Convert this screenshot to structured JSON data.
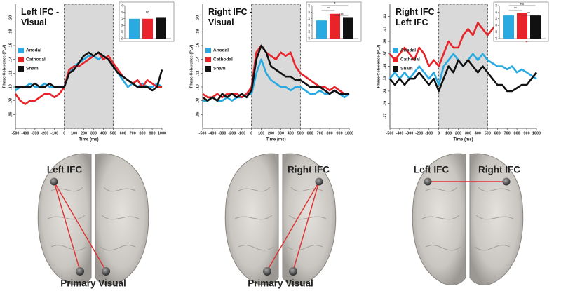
{
  "chart_data": [
    {
      "type": "line",
      "title": "Left IFC - Visual",
      "x_label": "Time (ms)",
      "y_label": "Phase Coherence (PLV)",
      "x": [
        -500,
        -450,
        -400,
        -350,
        -300,
        -250,
        -200,
        -150,
        -100,
        -50,
        0,
        50,
        100,
        150,
        200,
        250,
        300,
        350,
        400,
        450,
        500,
        550,
        600,
        650,
        700,
        750,
        800,
        850,
        900,
        950,
        1000
      ],
      "xlim": [
        -500,
        1000
      ],
      "xticks": [
        -500,
        -400,
        -300,
        -200,
        -100,
        0,
        100,
        200,
        300,
        400,
        500,
        600,
        700,
        800,
        900,
        1000
      ],
      "ylim": [
        0.04,
        0.22
      ],
      "yticks": [
        {
          "value": 0.06,
          "label": ".06"
        },
        {
          "value": 0.08,
          "label": ".08"
        },
        {
          "value": 0.1,
          "label": ".10"
        },
        {
          "value": 0.12,
          "label": ".12"
        },
        {
          "value": 0.14,
          "label": ".14"
        },
        {
          "value": 0.16,
          "label": ".16"
        },
        {
          "value": 0.18,
          "label": ".18"
        },
        {
          "value": 0.2,
          "label": ".20"
        }
      ],
      "shade": [
        0,
        500
      ],
      "legend": "left",
      "series": [
        {
          "name": "Anodal",
          "color": "#29abe2",
          "values": [
            0.095,
            0.1,
            0.1,
            0.105,
            0.1,
            0.1,
            0.105,
            0.1,
            0.1,
            0.1,
            0.1,
            0.12,
            0.13,
            0.135,
            0.14,
            0.145,
            0.145,
            0.14,
            0.145,
            0.14,
            0.13,
            0.12,
            0.11,
            0.1,
            0.105,
            0.1,
            0.105,
            0.1,
            0.1,
            0.105,
            0.1
          ]
        },
        {
          "name": "Cathodal",
          "color": "#e8232a",
          "values": [
            0.09,
            0.08,
            0.075,
            0.08,
            0.08,
            0.085,
            0.09,
            0.09,
            0.085,
            0.09,
            0.1,
            0.125,
            0.13,
            0.13,
            0.135,
            0.14,
            0.145,
            0.15,
            0.14,
            0.145,
            0.135,
            0.125,
            0.115,
            0.11,
            0.105,
            0.11,
            0.1,
            0.11,
            0.105,
            0.1,
            0.1
          ]
        },
        {
          "name": "Sham",
          "color": "#111111",
          "values": [
            0.1,
            0.1,
            0.1,
            0.1,
            0.105,
            0.1,
            0.1,
            0.105,
            0.1,
            0.1,
            0.1,
            0.12,
            0.125,
            0.135,
            0.145,
            0.15,
            0.145,
            0.15,
            0.145,
            0.14,
            0.13,
            0.12,
            0.115,
            0.11,
            0.105,
            0.1,
            0.1,
            0.1,
            0.095,
            0.1,
            0.125
          ]
        }
      ],
      "inset": {
        "values": [
          0.12,
          0.12,
          0.13
        ],
        "ylim": [
          0,
          0.2
        ],
        "yticks": [
          {
            "value": 0,
            "label": ".00"
          },
          {
            "value": 0.04,
            "label": ".04"
          },
          {
            "value": 0.08,
            "label": ".08"
          },
          {
            "value": 0.12,
            "label": ".12"
          },
          {
            "value": 0.16,
            "label": ".16"
          },
          {
            "value": 0.2,
            "label": ".20"
          }
        ],
        "significance": [
          "ns"
        ]
      }
    },
    {
      "type": "line",
      "title": "Right IFC - Visual",
      "x_label": "Time (ms)",
      "y_label": "Phase Coherence (PLV)",
      "x": [
        -500,
        -450,
        -400,
        -350,
        -300,
        -250,
        -200,
        -150,
        -100,
        -50,
        0,
        50,
        100,
        150,
        200,
        250,
        300,
        350,
        400,
        450,
        500,
        550,
        600,
        650,
        700,
        750,
        800,
        850,
        900,
        950,
        1000
      ],
      "xlim": [
        -500,
        1000
      ],
      "xticks": [
        -500,
        -400,
        -300,
        -200,
        -100,
        0,
        100,
        200,
        300,
        400,
        500,
        600,
        700,
        800,
        900,
        1000
      ],
      "ylim": [
        0.04,
        0.22
      ],
      "yticks": [
        {
          "value": 0.06,
          "label": ".06"
        },
        {
          "value": 0.08,
          "label": ".08"
        },
        {
          "value": 0.1,
          "label": ".10"
        },
        {
          "value": 0.12,
          "label": ".12"
        },
        {
          "value": 0.14,
          "label": ".14"
        },
        {
          "value": 0.16,
          "label": ".16"
        },
        {
          "value": 0.18,
          "label": ".18"
        },
        {
          "value": 0.2,
          "label": ".20"
        }
      ],
      "shade": [
        0,
        500
      ],
      "legend": "left",
      "series": [
        {
          "name": "Anodal",
          "color": "#29abe2",
          "values": [
            0.08,
            0.08,
            0.085,
            0.08,
            0.08,
            0.085,
            0.08,
            0.085,
            0.085,
            0.09,
            0.09,
            0.12,
            0.14,
            0.12,
            0.11,
            0.105,
            0.1,
            0.1,
            0.095,
            0.1,
            0.1,
            0.095,
            0.09,
            0.09,
            0.095,
            0.09,
            0.09,
            0.095,
            0.09,
            0.085,
            0.09
          ]
        },
        {
          "name": "Cathodal",
          "color": "#e8232a",
          "values": [
            0.09,
            0.085,
            0.085,
            0.09,
            0.085,
            0.09,
            0.09,
            0.09,
            0.085,
            0.09,
            0.1,
            0.15,
            0.16,
            0.15,
            0.145,
            0.14,
            0.15,
            0.145,
            0.15,
            0.13,
            0.12,
            0.115,
            0.11,
            0.105,
            0.1,
            0.1,
            0.095,
            0.1,
            0.095,
            0.09,
            0.09
          ]
        },
        {
          "name": "Sham",
          "color": "#111111",
          "values": [
            0.085,
            0.08,
            0.085,
            0.08,
            0.09,
            0.085,
            0.09,
            0.085,
            0.09,
            0.085,
            0.095,
            0.14,
            0.16,
            0.15,
            0.13,
            0.125,
            0.12,
            0.115,
            0.115,
            0.11,
            0.11,
            0.105,
            0.1,
            0.1,
            0.1,
            0.095,
            0.09,
            0.095,
            0.09,
            0.09,
            0.09
          ]
        }
      ],
      "inset": {
        "values": [
          0.11,
          0.15,
          0.13
        ],
        "ylim": [
          0,
          0.2
        ],
        "yticks": [
          {
            "value": 0,
            "label": ".00"
          },
          {
            "value": 0.04,
            "label": ".04"
          },
          {
            "value": 0.08,
            "label": ".08"
          },
          {
            "value": 0.12,
            "label": ".12"
          },
          {
            "value": 0.16,
            "label": ".16"
          },
          {
            "value": 0.2,
            "label": ".20"
          }
        ],
        "significance": [
          "*",
          "**",
          "ns"
        ]
      }
    },
    {
      "type": "line",
      "title": "Right IFC - Left IFC",
      "x_label": "Time (ms)",
      "y_label": "Phase Coherence (PLV)",
      "x": [
        -500,
        -450,
        -400,
        -350,
        -300,
        -250,
        -200,
        -150,
        -100,
        -50,
        0,
        50,
        100,
        150,
        200,
        250,
        300,
        350,
        400,
        450,
        500,
        550,
        600,
        650,
        700,
        750,
        800,
        850,
        900,
        950,
        1000
      ],
      "xlim": [
        -500,
        1000
      ],
      "xticks": [
        -500,
        -400,
        -300,
        -200,
        -100,
        0,
        100,
        200,
        300,
        400,
        500,
        600,
        700,
        800,
        900,
        1000
      ],
      "ylim": [
        0.25,
        0.45
      ],
      "yticks": [
        {
          "value": 0.27,
          "label": ".27"
        },
        {
          "value": 0.29,
          "label": ".29"
        },
        {
          "value": 0.31,
          "label": ".31"
        },
        {
          "value": 0.33,
          "label": ".33"
        },
        {
          "value": 0.35,
          "label": ".35"
        },
        {
          "value": 0.37,
          "label": ".37"
        },
        {
          "value": 0.39,
          "label": ".39"
        },
        {
          "value": 0.41,
          "label": ".41"
        },
        {
          "value": 0.43,
          "label": ".43"
        }
      ],
      "shade": [
        0,
        500
      ],
      "legend": "left",
      "series": [
        {
          "name": "Anodal",
          "color": "#29abe2",
          "values": [
            0.33,
            0.34,
            0.33,
            0.34,
            0.33,
            0.34,
            0.35,
            0.34,
            0.33,
            0.34,
            0.32,
            0.35,
            0.36,
            0.37,
            0.36,
            0.35,
            0.36,
            0.37,
            0.36,
            0.37,
            0.36,
            0.355,
            0.35,
            0.35,
            0.345,
            0.35,
            0.34,
            0.345,
            0.34,
            0.335,
            0.33
          ]
        },
        {
          "name": "Cathodal",
          "color": "#e8232a",
          "values": [
            0.37,
            0.36,
            0.37,
            0.38,
            0.37,
            0.36,
            0.38,
            0.37,
            0.35,
            0.36,
            0.35,
            0.37,
            0.39,
            0.38,
            0.38,
            0.4,
            0.41,
            0.4,
            0.42,
            0.41,
            0.4,
            0.41,
            0.42,
            0.41,
            0.4,
            0.42,
            0.41,
            0.4,
            0.39,
            0.4,
            0.41
          ]
        },
        {
          "name": "Sham",
          "color": "#111111",
          "values": [
            0.33,
            0.32,
            0.33,
            0.32,
            0.33,
            0.33,
            0.34,
            0.33,
            0.32,
            0.33,
            0.31,
            0.33,
            0.35,
            0.34,
            0.36,
            0.35,
            0.36,
            0.35,
            0.34,
            0.35,
            0.34,
            0.33,
            0.32,
            0.32,
            0.31,
            0.31,
            0.315,
            0.32,
            0.32,
            0.33,
            0.34
          ]
        }
      ],
      "inset": {
        "values": [
          0.35,
          0.39,
          0.35
        ],
        "ylim": [
          0,
          0.5
        ],
        "yticks": [
          {
            "value": 0,
            "label": ".00"
          },
          {
            "value": 0.1,
            "label": ".10"
          },
          {
            "value": 0.2,
            "label": ".20"
          },
          {
            "value": 0.3,
            "label": ".30"
          },
          {
            "value": 0.4,
            "label": ".40"
          },
          {
            "value": 0.5,
            "label": ".50"
          }
        ],
        "significance": [
          "ns",
          "**",
          "**"
        ]
      }
    }
  ],
  "brains": [
    {
      "nodes": [
        {
          "label": "Left IFC"
        },
        {
          "label": "Primary Visual"
        }
      ]
    },
    {
      "nodes": [
        {
          "label": "Right IFC"
        },
        {
          "label": "Primary Visual"
        }
      ]
    },
    {
      "nodes": [
        {
          "label": "Left IFC"
        },
        {
          "label": "Right IFC"
        }
      ]
    }
  ]
}
